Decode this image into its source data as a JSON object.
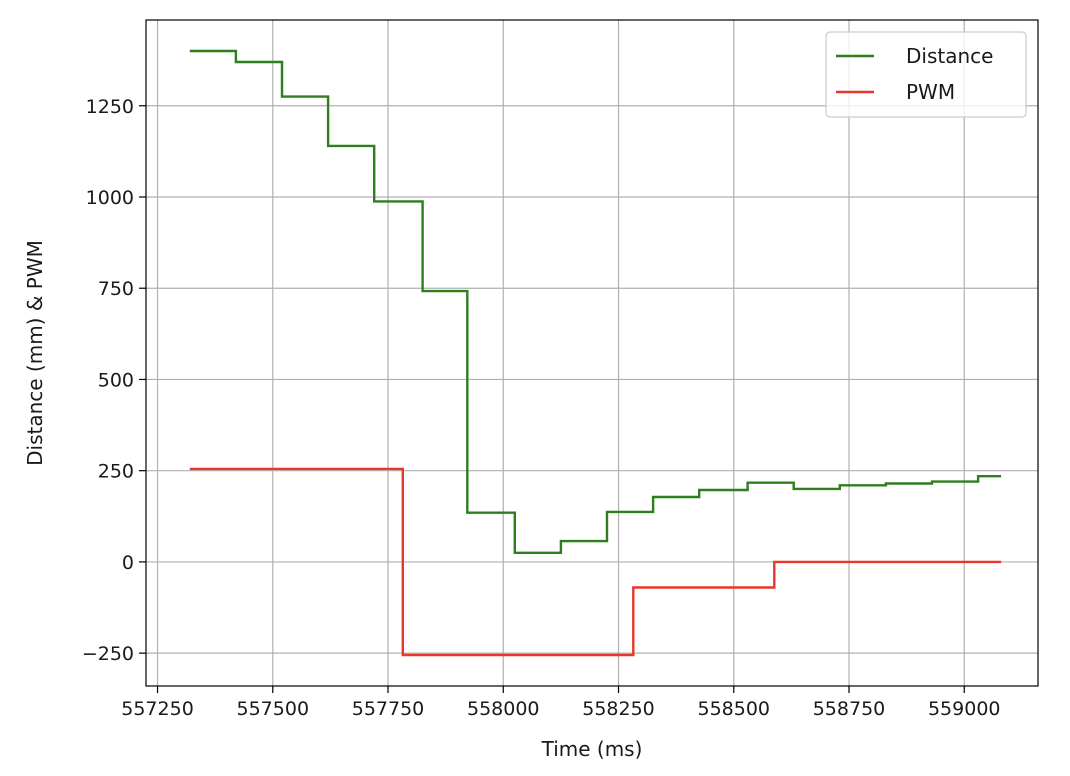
{
  "chart_data": {
    "type": "line",
    "title": "",
    "xlabel": "Time (ms)",
    "ylabel": "Distance (mm) & PWM",
    "xlim": [
      557225,
      559160
    ],
    "ylim": [
      -340,
      1485
    ],
    "xticks": [
      557250,
      557500,
      557750,
      558000,
      558250,
      558500,
      558750,
      559000
    ],
    "xtick_labels": [
      "557250",
      "557500",
      "557750",
      "558000",
      "558250",
      "558500",
      "558750",
      "559000"
    ],
    "yticks": [
      -250,
      0,
      250,
      500,
      750,
      1000,
      1250
    ],
    "ytick_labels": [
      "−250",
      "0",
      "250",
      "500",
      "750",
      "1000",
      "1250"
    ],
    "grid": true,
    "legend_position": "top-right",
    "step": true,
    "series": [
      {
        "name": "Distance",
        "color": "#2e7d1f",
        "x": [
          557320,
          557420,
          557520,
          557620,
          557720,
          557825,
          557922,
          558025,
          558125,
          558225,
          558325,
          558425,
          558530,
          558630,
          558730,
          558830,
          558930,
          559030,
          559080
        ],
        "y": [
          1400,
          1370,
          1275,
          1140,
          988,
          742,
          135,
          25,
          57,
          137,
          178,
          197,
          217,
          200,
          210,
          215,
          220,
          235,
          235
        ]
      },
      {
        "name": "PWM",
        "color": "#e8372a",
        "x": [
          557320,
          557782,
          558282,
          558588,
          559080
        ],
        "y": [
          255,
          -255,
          -70,
          0,
          0
        ]
      }
    ]
  }
}
